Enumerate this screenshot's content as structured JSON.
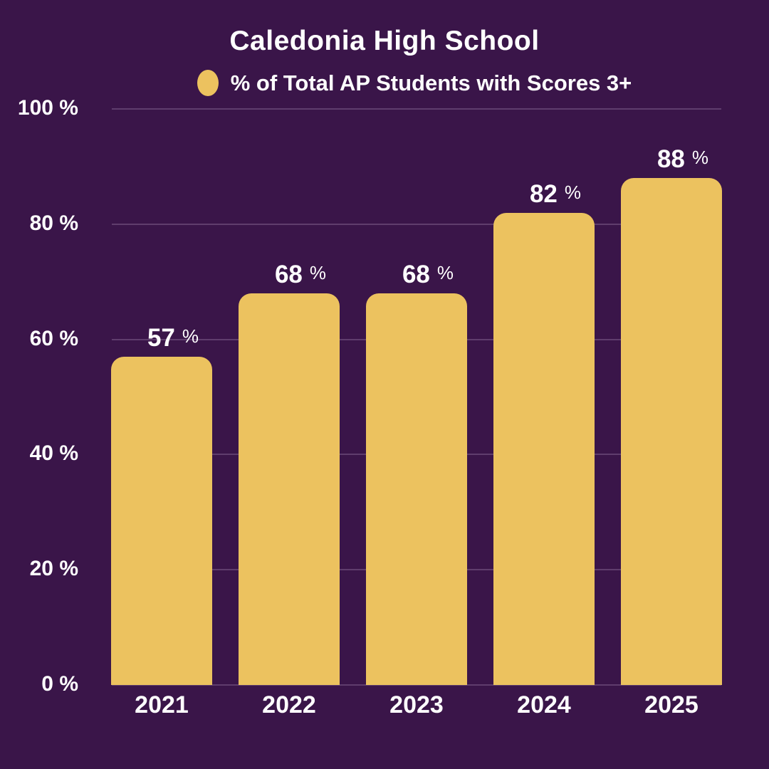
{
  "title": "Caledonia High School",
  "legend": {
    "label": "% of Total AP Students with Scores 3+",
    "marker_color": "#ECC25F"
  },
  "colors": {
    "background": "#3A1549",
    "bar": "#ECC25F",
    "text": "#FFFFFF",
    "gridline": "rgba(226,205,238,0.22)"
  },
  "chart_data": {
    "type": "bar",
    "title": "Caledonia High School",
    "subtitle": "% of Total AP Students with Scores 3+",
    "categories": [
      "2021",
      "2022",
      "2023",
      "2024",
      "2025"
    ],
    "values": [
      57,
      68,
      68,
      82,
      88
    ],
    "unit": "%",
    "xlabel": "",
    "ylabel": "",
    "ylim": [
      0,
      100
    ],
    "yticks": [
      0,
      20,
      40,
      60,
      80,
      100
    ],
    "ytick_labels": [
      "0 %",
      "20 %",
      "40 %",
      "60 %",
      "80 %",
      "100 %"
    ],
    "grid": true,
    "legend_position": "top-center",
    "value_labels": "above-bars"
  }
}
